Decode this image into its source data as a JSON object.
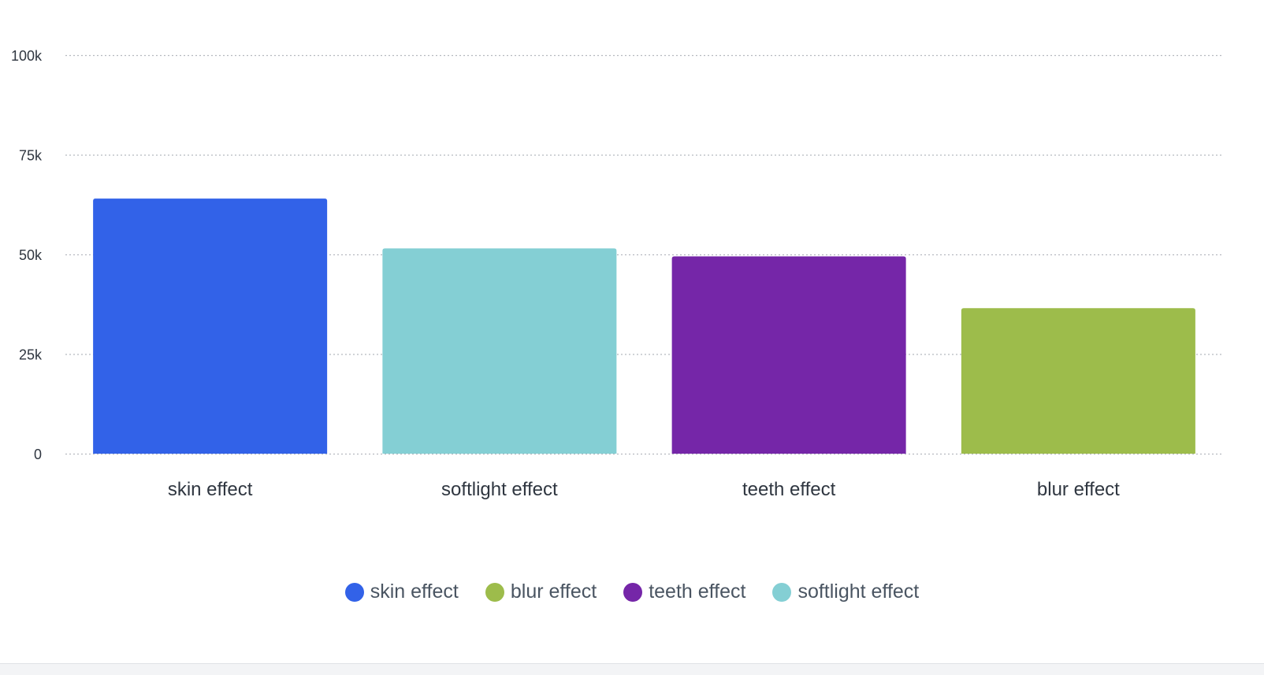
{
  "chart_data": {
    "type": "bar",
    "title": "",
    "xlabel": "",
    "ylabel": "",
    "categories": [
      "skin effect",
      "softlight effect",
      "teeth effect",
      "blur effect"
    ],
    "values": [
      64000,
      51500,
      49500,
      36500
    ],
    "colors": [
      "#3262e8",
      "#84cfd4",
      "#7526a8",
      "#9dbc4b"
    ],
    "ylim": [
      0,
      100000
    ],
    "yticks": [
      0,
      25000,
      50000,
      75000,
      100000
    ],
    "ytick_labels": [
      "0",
      "25k",
      "50k",
      "75k",
      "100k"
    ],
    "grid": true,
    "legend_position": "bottom-center"
  },
  "legend": {
    "items": [
      {
        "label": "skin effect",
        "color": "#3262e8"
      },
      {
        "label": "blur effect",
        "color": "#9dbc4b"
      },
      {
        "label": "teeth effect",
        "color": "#7526a8"
      },
      {
        "label": "softlight effect",
        "color": "#84cfd4"
      }
    ]
  }
}
